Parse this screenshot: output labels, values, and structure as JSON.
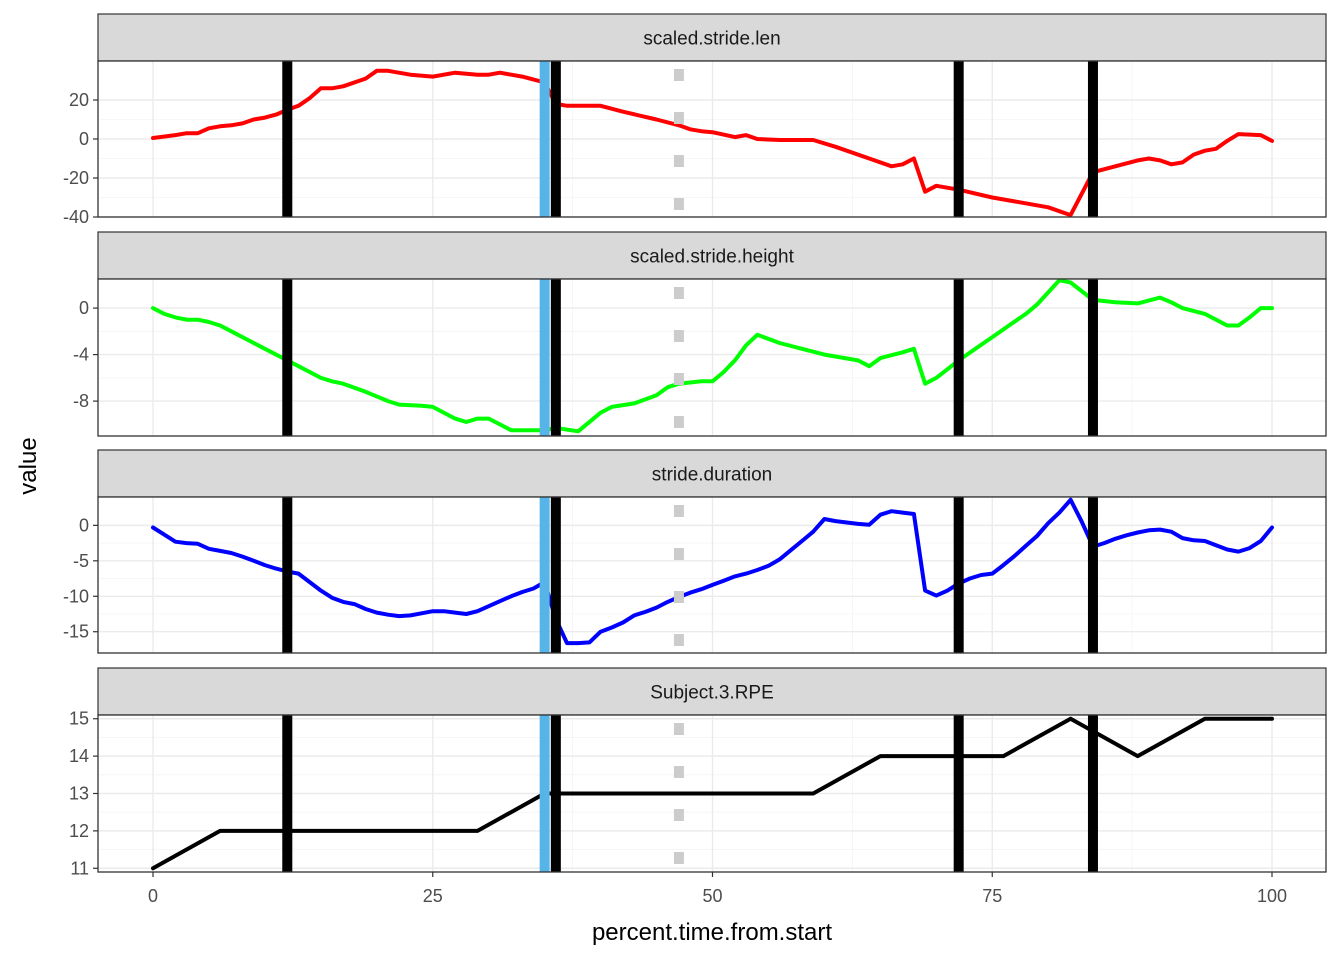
{
  "chart_data": {
    "type": "line",
    "xlabel": "percent.time.from.start",
    "ylabel": "value",
    "xlim": [
      0,
      100
    ],
    "x_ticks": [
      0,
      25,
      50,
      75,
      100
    ],
    "x_tick_labels": [
      "0",
      "25",
      "50",
      "75",
      "100"
    ],
    "vlines": {
      "black": [
        12,
        36,
        72,
        84
      ],
      "blue": [
        35
      ],
      "dotted_grey": [
        47
      ],
      "colors": {
        "black": "#000000",
        "blue": "#56B4E9",
        "dotted_grey": "#cccccc"
      }
    },
    "facets": [
      {
        "strip": "scaled.stride.len",
        "color": "#ff0000",
        "ylim": [
          -40,
          40
        ],
        "y_ticks": [
          20,
          0,
          -20,
          -40
        ],
        "y_tick_labels": [
          "20",
          "0",
          "-20",
          "-40"
        ],
        "x": [
          0,
          2,
          3,
          4,
          5,
          6,
          7,
          8,
          9,
          10,
          11,
          12,
          13,
          14,
          15,
          16,
          17,
          19,
          20,
          21,
          23,
          25,
          27,
          29,
          30,
          31,
          33,
          35,
          36,
          37,
          40,
          42,
          45,
          47,
          48,
          49,
          50,
          52,
          53,
          54,
          56,
          58,
          59,
          61,
          64,
          66,
          67,
          68,
          69,
          70,
          72,
          75,
          80,
          82,
          84,
          86,
          88,
          89,
          90,
          91,
          92,
          93,
          94,
          95,
          96,
          97,
          99,
          100
        ],
        "y": [
          0.5,
          2,
          3,
          3,
          5.5,
          6.5,
          7,
          8,
          10,
          11,
          12.5,
          15,
          17,
          21,
          26,
          26,
          27,
          31,
          35,
          35,
          33,
          32,
          34,
          33,
          33,
          34,
          32,
          29,
          18,
          17,
          17,
          14,
          10,
          7,
          5,
          4,
          3.5,
          1,
          2,
          0,
          -0.5,
          -0.5,
          -0.5,
          -4,
          -10,
          -14,
          -13,
          -10,
          -27,
          -24,
          -26,
          -30,
          -35,
          -39,
          -17,
          -14,
          -11,
          -10,
          -11,
          -13,
          -12,
          -8,
          -6,
          -5,
          -1,
          2.5,
          2,
          -1
        ]
      },
      {
        "strip": "scaled.stride.height",
        "color": "#00ff00",
        "ylim": [
          -11,
          2.5
        ],
        "y_ticks": [
          0,
          -4,
          -8
        ],
        "y_tick_labels": [
          "0",
          "-4",
          "-8"
        ],
        "x": [
          0,
          1,
          2,
          3,
          4,
          5,
          6,
          7,
          8,
          9,
          10,
          12,
          13,
          14,
          15,
          16,
          17,
          19,
          21,
          22,
          24,
          25,
          27,
          28,
          29,
          30,
          31,
          32,
          33,
          35,
          36,
          38,
          40,
          41,
          43,
          45,
          46,
          47,
          49,
          50,
          51,
          52,
          53,
          54,
          56,
          58,
          60,
          63,
          64,
          65,
          67,
          68,
          69,
          70,
          72,
          75,
          78,
          79,
          81,
          82,
          84,
          86,
          88,
          90,
          91,
          92,
          94,
          96,
          97,
          98,
          99,
          100
        ],
        "y": [
          0,
          -0.5,
          -0.8,
          -1,
          -1,
          -1.2,
          -1.5,
          -2,
          -2.5,
          -3,
          -3.5,
          -4.5,
          -5,
          -5.5,
          -6,
          -6.3,
          -6.5,
          -7.2,
          -8,
          -8.3,
          -8.4,
          -8.5,
          -9.5,
          -9.8,
          -9.5,
          -9.5,
          -10,
          -10.5,
          -10.5,
          -10.5,
          -10.3,
          -10.6,
          -9,
          -8.5,
          -8.2,
          -7.5,
          -6.8,
          -6.5,
          -6.3,
          -6.3,
          -5.5,
          -4.5,
          -3.2,
          -2.3,
          -3,
          -3.5,
          -4,
          -4.5,
          -5,
          -4.3,
          -3.8,
          -3.5,
          -6.5,
          -6,
          -4.5,
          -2.5,
          -0.5,
          0.3,
          2.4,
          2.2,
          0.7,
          0.5,
          0.4,
          0.9,
          0.5,
          0,
          -0.5,
          -1.5,
          -1.5,
          -0.8,
          0,
          0
        ]
      },
      {
        "strip": "stride.duration",
        "color": "#0000ff",
        "ylim": [
          -18,
          4
        ],
        "y_ticks": [
          0,
          -5,
          -10,
          -15
        ],
        "y_tick_labels": [
          "0",
          "-5",
          "-10",
          "-15"
        ],
        "x": [
          0,
          1,
          2,
          3,
          4,
          5,
          6,
          7,
          8,
          9,
          10,
          11,
          12,
          13,
          14,
          15,
          16,
          17,
          18,
          19,
          20,
          21,
          22,
          23,
          24,
          25,
          26,
          27,
          28,
          29,
          30,
          31,
          32,
          33,
          34,
          35,
          36,
          37,
          38,
          39,
          40,
          41,
          42,
          43,
          44,
          45,
          46,
          47,
          48,
          49,
          50,
          51,
          52,
          53,
          54,
          55,
          56,
          57,
          58,
          59,
          60,
          61,
          62,
          63,
          64,
          65,
          66,
          67,
          68,
          69,
          70,
          71,
          72,
          73,
          74,
          75,
          76,
          77,
          78,
          79,
          80,
          81,
          82,
          83,
          84,
          85,
          86,
          87,
          88,
          89,
          90,
          91,
          92,
          93,
          94,
          95,
          96,
          97,
          98,
          99,
          100
        ],
        "y": [
          -0.3,
          -1.3,
          -2.3,
          -2.5,
          -2.6,
          -3.3,
          -3.6,
          -3.9,
          -4.4,
          -5,
          -5.6,
          -6.1,
          -6.5,
          -6.8,
          -8,
          -9.2,
          -10.2,
          -10.8,
          -11.1,
          -11.8,
          -12.3,
          -12.6,
          -12.8,
          -12.7,
          -12.4,
          -12.1,
          -12.1,
          -12.3,
          -12.5,
          -12.1,
          -11.4,
          -10.7,
          -10,
          -9.4,
          -8.9,
          -8,
          -13.2,
          -16.6,
          -16.6,
          -16.5,
          -15,
          -14.4,
          -13.7,
          -12.7,
          -12.2,
          -11.6,
          -10.8,
          -10.1,
          -9.5,
          -9,
          -8.4,
          -7.8,
          -7.2,
          -6.8,
          -6.3,
          -5.7,
          -4.8,
          -3.5,
          -2.2,
          -0.9,
          0.9,
          0.6,
          0.4,
          0.2,
          0.1,
          1.5,
          2,
          1.8,
          1.6,
          -9.2,
          -9.9,
          -9.2,
          -8.2,
          -7.5,
          -7,
          -6.8,
          -5.6,
          -4.3,
          -2.9,
          -1.5,
          0.3,
          1.8,
          3.6,
          0.5,
          -3,
          -2.5,
          -1.9,
          -1.4,
          -1,
          -0.7,
          -0.6,
          -0.9,
          -1.8,
          -2.1,
          -2.2,
          -2.8,
          -3.4,
          -3.7,
          -3.2,
          -2.2,
          -0.3
        ]
      },
      {
        "strip": "Subject.3.RPE",
        "color": "#000000",
        "ylim": [
          10.9,
          15.1
        ],
        "y_ticks": [
          15,
          14,
          13,
          12,
          11
        ],
        "y_tick_labels": [
          "15",
          "14",
          "13",
          "12",
          "11"
        ],
        "x": [
          0,
          6,
          29,
          35,
          36,
          59,
          65,
          76,
          82,
          88,
          94,
          100
        ],
        "y": [
          11,
          12,
          12,
          13,
          13,
          13,
          14,
          14,
          15,
          14,
          15,
          15
        ]
      }
    ]
  }
}
